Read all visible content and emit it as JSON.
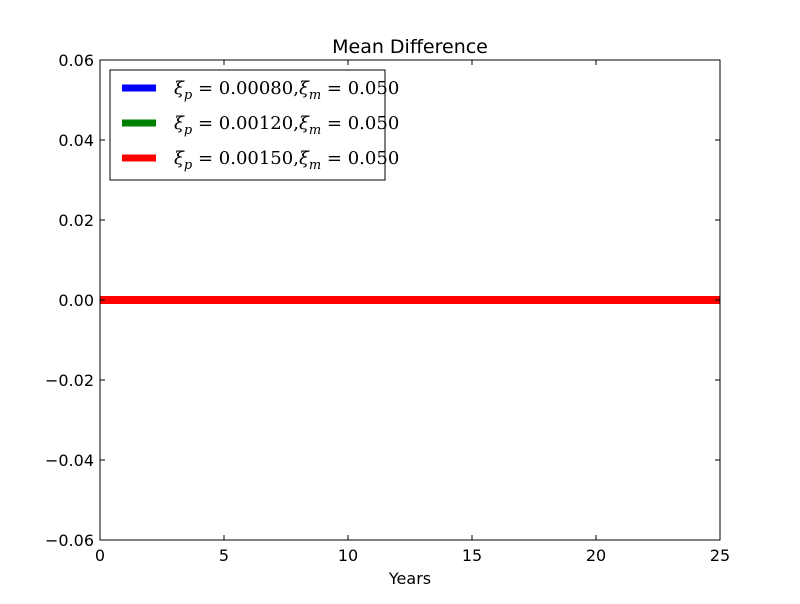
{
  "chart_data": {
    "type": "line",
    "title": "Mean Difference",
    "xlabel": "Years",
    "ylabel": "",
    "xlim": [
      0,
      25
    ],
    "ylim": [
      -0.06,
      0.06
    ],
    "xticks": [
      0,
      5,
      10,
      15,
      20,
      25
    ],
    "xtick_labels": [
      "0",
      "5",
      "10",
      "15",
      "20",
      "25"
    ],
    "yticks": [
      0.06,
      0.04,
      0.02,
      0.0,
      -0.02,
      -0.04,
      -0.06
    ],
    "ytick_labels": [
      "0.06",
      "0.04",
      "0.02",
      "0.00",
      "−0.02",
      "−0.04",
      "−0.06"
    ],
    "grid": false,
    "legend_position": "upper-left",
    "series": [
      {
        "name": "ξ_p = 0.00080, ξ_m = 0.050",
        "color": "#0000ff",
        "x": [
          0,
          25
        ],
        "y": [
          0,
          0
        ]
      },
      {
        "name": "ξ_p = 0.00120, ξ_m = 0.050",
        "color": "#008000",
        "x": [
          0,
          25
        ],
        "y": [
          0,
          0
        ]
      },
      {
        "name": "ξ_p = 0.00150, ξ_m = 0.050",
        "color": "#ff0000",
        "x": [
          0,
          25
        ],
        "y": [
          0,
          0
        ]
      }
    ],
    "legend": [
      {
        "p_value": "0.00080",
        "m_value": "0.050"
      },
      {
        "p_value": "0.00120",
        "m_value": "0.050"
      },
      {
        "p_value": "0.00150",
        "m_value": "0.050"
      }
    ]
  }
}
